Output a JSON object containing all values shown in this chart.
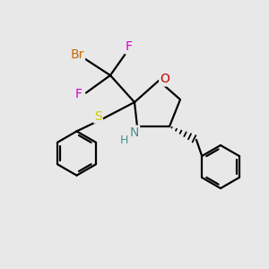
{
  "bg_color": "#e8e8e8",
  "atom_colors": {
    "C": "#000000",
    "H": "#4a9090",
    "N": "#4a9090",
    "O": "#cc0000",
    "S": "#cccc00",
    "F": "#cc00cc",
    "Br": "#cc6600"
  },
  "bond_color": "#000000",
  "bond_width": 1.6
}
